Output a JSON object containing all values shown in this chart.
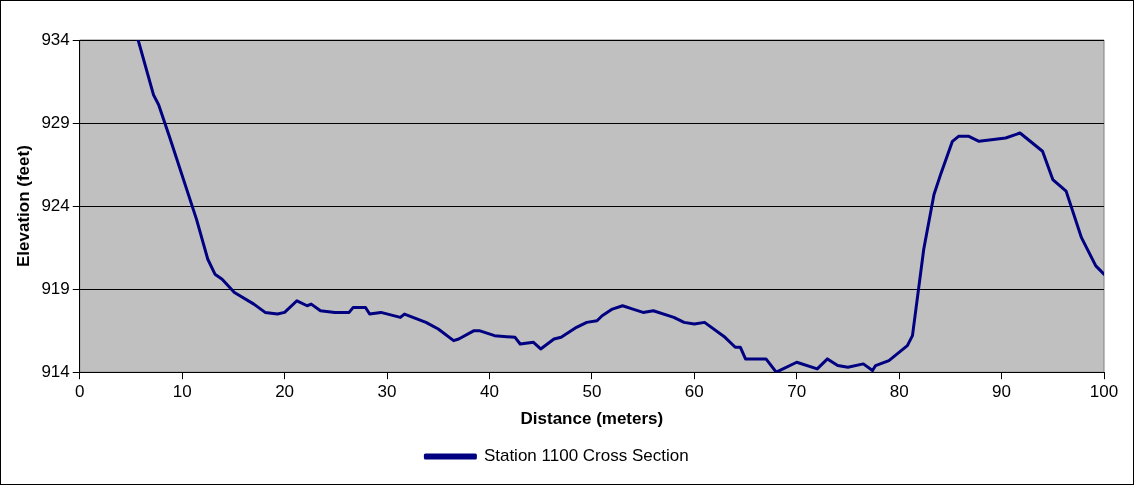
{
  "chart_data": {
    "type": "line",
    "xlabel": "Distance (meters)",
    "ylabel": "Elevation (feet)",
    "x": [
      5.7,
      7.2,
      7.7,
      8.8,
      11.4,
      12.5,
      13.2,
      13.9,
      15.1,
      17,
      18.1,
      19.3,
      20,
      21.2,
      22.2,
      22.6,
      23.5,
      24.9,
      26.3,
      26.7,
      27.9,
      28.3,
      29.4,
      31.3,
      31.7,
      33.8,
      35,
      36.5,
      37,
      38.5,
      39,
      40.5,
      42.5,
      43,
      44.3,
      45,
      46.3,
      47,
      48.5,
      49.5,
      50.5,
      51,
      52,
      53,
      54,
      55,
      56,
      58,
      59,
      60,
      61,
      63,
      64,
      64.5,
      65,
      67,
      68,
      70,
      72,
      73,
      74,
      75,
      76.5,
      77.4,
      77.7,
      79,
      80.8,
      81.3,
      82.4,
      83.4,
      84.1,
      85.2,
      85.8,
      86.8,
      87.8,
      90.4,
      91.8,
      94,
      95,
      96.3,
      97.8,
      99.2,
      100
    ],
    "series": [
      {
        "name": "Station 1100 Cross Section",
        "color": "#000080",
        "values": [
          934,
          930.7,
          930.1,
          928.1,
          923.2,
          920.8,
          919.9,
          919.6,
          918.8,
          918.1,
          917.6,
          917.5,
          917.6,
          918.3,
          918,
          918.1,
          917.7,
          917.6,
          917.6,
          917.9,
          917.9,
          917.5,
          917.6,
          917.3,
          917.5,
          917,
          916.6,
          915.9,
          916,
          916.5,
          916.5,
          916.2,
          916.1,
          915.7,
          915.8,
          915.4,
          916,
          916.1,
          916.7,
          917,
          917.1,
          917.4,
          917.8,
          918,
          917.8,
          917.6,
          917.7,
          917.3,
          917,
          916.9,
          917,
          916.1,
          915.5,
          915.5,
          914.8,
          914.8,
          914,
          914.6,
          914.2,
          914.8,
          914.4,
          914.3,
          914.5,
          914.1,
          914.4,
          914.7,
          915.6,
          916.2,
          921.4,
          924.7,
          926,
          927.9,
          928.2,
          928.2,
          927.9,
          928.1,
          928.4,
          927.3,
          925.6,
          924.9,
          922.1,
          920.4,
          919.9
        ]
      }
    ],
    "xlim": [
      0,
      100
    ],
    "xticks": [
      0,
      10,
      20,
      30,
      40,
      50,
      60,
      70,
      80,
      90,
      100
    ],
    "ylim": [
      914,
      934
    ],
    "yticks": [
      914,
      919,
      924,
      929,
      934
    ],
    "grid": "y",
    "legend": "bottom",
    "marker": "none",
    "line_style": "solid"
  }
}
